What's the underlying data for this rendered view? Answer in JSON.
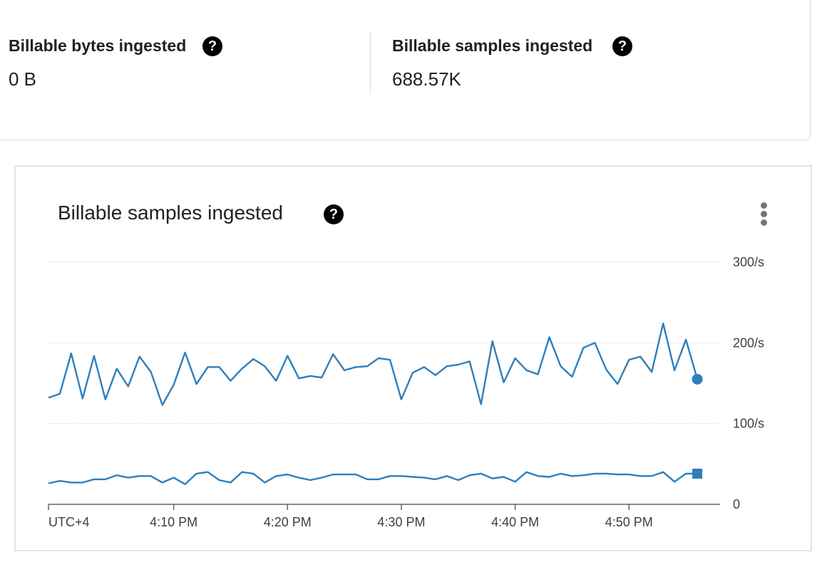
{
  "stats": [
    {
      "title": "Billable bytes ingested",
      "value": "0 B",
      "help_icon": "help-circle-icon"
    },
    {
      "title": "Billable samples ingested",
      "value": "688.57K",
      "help_icon": "help-circle-icon"
    }
  ],
  "chart_card": {
    "title": "Billable samples ingested",
    "help_icon": "help-circle-icon",
    "menu_icon": "more-vert-icon"
  },
  "colors": {
    "series": "#2e7fbd",
    "grid": "#dadce0",
    "axis": "#5f6368"
  },
  "chart_data": {
    "type": "line",
    "title": "Billable samples ingested",
    "xlabel": "",
    "ylabel": "",
    "timezone_label": "UTC+4",
    "x_tick_labels": [
      "4:10 PM",
      "4:20 PM",
      "4:30 PM",
      "4:40 PM",
      "4:50 PM"
    ],
    "y_tick_labels": [
      "0",
      "100/s",
      "200/s",
      "300/s"
    ],
    "ylim": [
      0,
      300
    ],
    "x_unit": "minutes",
    "x": [
      0,
      1,
      2,
      3,
      4,
      5,
      6,
      7,
      8,
      9,
      10,
      11,
      12,
      13,
      14,
      15,
      16,
      17,
      18,
      19,
      20,
      21,
      22,
      23,
      24,
      25,
      26,
      27,
      28,
      29,
      30,
      31,
      32,
      33,
      34,
      35,
      36,
      37,
      38,
      39,
      40,
      41,
      42,
      43,
      44,
      45,
      46,
      47,
      48,
      49,
      50,
      51,
      52,
      53,
      54,
      55,
      56,
      57
    ],
    "x_tick_positions": [
      11,
      21,
      31,
      41,
      51
    ],
    "xlim": [
      0,
      59
    ],
    "grid": true,
    "legend": "none",
    "series": [
      {
        "marker": "circle",
        "values": [
          132,
          137,
          187,
          131,
          184,
          130,
          168,
          146,
          183,
          164,
          123,
          148,
          188,
          149,
          170,
          170,
          153,
          168,
          180,
          171,
          153,
          184,
          156,
          159,
          157,
          186,
          166,
          170,
          171,
          181,
          179,
          130,
          163,
          170,
          160,
          171,
          173,
          177,
          124,
          202,
          151,
          181,
          166,
          161,
          207,
          171,
          158,
          194,
          200,
          167,
          149,
          179,
          183,
          164,
          224,
          166,
          204,
          155
        ]
      },
      {
        "marker": "square",
        "values": [
          26,
          29,
          27,
          27,
          31,
          31,
          36,
          33,
          35,
          35,
          27,
          33,
          25,
          38,
          40,
          30,
          27,
          40,
          38,
          27,
          35,
          37,
          33,
          30,
          33,
          37,
          37,
          37,
          31,
          31,
          35,
          35,
          34,
          33,
          31,
          35,
          30,
          36,
          38,
          32,
          34,
          28,
          40,
          35,
          34,
          38,
          35,
          36,
          38,
          38,
          37,
          37,
          35,
          35,
          40,
          28,
          38,
          38
        ]
      }
    ]
  }
}
